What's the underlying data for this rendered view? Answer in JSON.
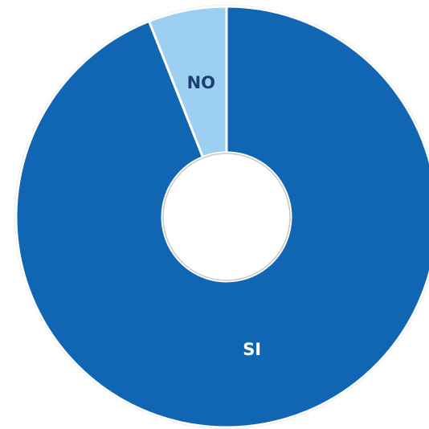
{
  "chart_data": {
    "type": "donut",
    "categories": [
      "SI",
      "NO"
    ],
    "values": [
      94,
      6
    ],
    "colors": [
      "#1166b3",
      "#9dcff3"
    ],
    "label_colors": [
      "#ffffff",
      "#1b3f73"
    ]
  }
}
